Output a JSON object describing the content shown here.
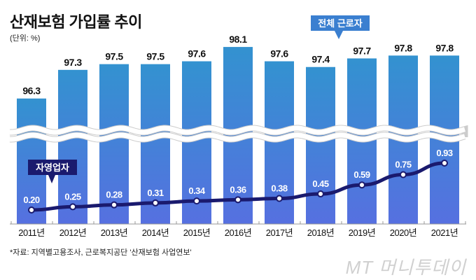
{
  "title": "산재보험 가입률 추이",
  "unit": "(단위: %)",
  "source": "*자료: 지역별고용조사, 근로복지공단 '산재보험 사업연보'",
  "watermark": "MT 머니투데이",
  "colors": {
    "bar_top": "#3590d0",
    "bar_bottom": "#5470e0",
    "line": "#1a1a6e",
    "callout_total": "#3a7fd0",
    "callout_self": "#1a1a6e"
  },
  "chart_data": {
    "type": "bar",
    "title": "산재보험 가입률 추이",
    "categories": [
      "2011년",
      "2012년",
      "2013년",
      "2014년",
      "2015년",
      "2016년",
      "2017년",
      "2018년",
      "2019년",
      "2020년",
      "2021년"
    ],
    "series": [
      {
        "name": "전체 근로자",
        "type": "bar",
        "values": [
          96.3,
          97.3,
          97.5,
          97.5,
          97.6,
          98.1,
          97.6,
          97.4,
          97.7,
          97.8,
          97.8
        ],
        "labels": [
          "96.3",
          "97.3",
          "97.5",
          "97.5",
          "97.6",
          "98.1",
          "97.6",
          "97.4",
          "97.7",
          "97.8",
          "97.8"
        ]
      },
      {
        "name": "자영업자",
        "type": "line",
        "values": [
          0.2,
          0.25,
          0.28,
          0.31,
          0.34,
          0.36,
          0.38,
          0.45,
          0.59,
          0.75,
          0.93
        ],
        "labels": [
          "0.20",
          "0.25",
          "0.28",
          "0.31",
          "0.34",
          "0.36",
          "0.38",
          "0.45",
          "0.59",
          "0.75",
          "0.93"
        ]
      }
    ],
    "axis_break": true,
    "xlabel": "",
    "ylabel": "",
    "legend": [
      "전체 근로자",
      "자영업자"
    ]
  }
}
